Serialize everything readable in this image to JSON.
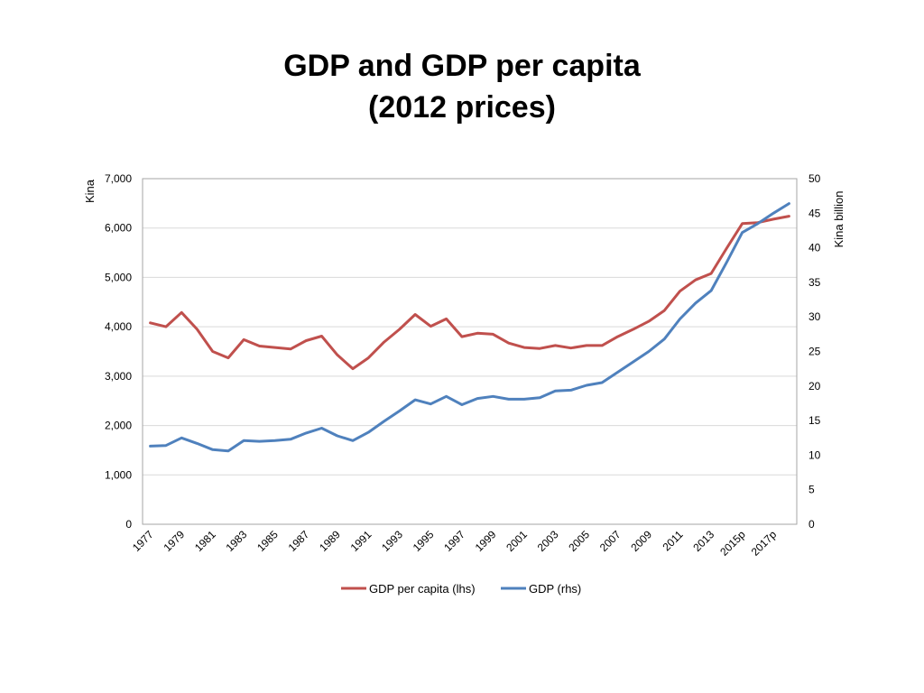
{
  "title_lines": [
    "GDP and GDP per capita",
    "(2012 prices)"
  ],
  "chart_data": {
    "type": "line",
    "title": "GDP and GDP per capita (2012 prices)",
    "x": [
      "1977",
      "1978",
      "1979",
      "1980",
      "1981",
      "1982",
      "1983",
      "1984",
      "1985",
      "1986",
      "1987",
      "1988",
      "1989",
      "1990",
      "1991",
      "1992",
      "1993",
      "1994",
      "1995",
      "1996",
      "1997",
      "1998",
      "1999",
      "2000",
      "2001",
      "2002",
      "2003",
      "2004",
      "2005",
      "2006",
      "2007",
      "2008",
      "2009",
      "2010",
      "2011",
      "2012",
      "2013",
      "2014",
      "2015p",
      "2016p",
      "2017p",
      "2018p"
    ],
    "x_tick_labels": [
      "1977",
      "1979",
      "1981",
      "1983",
      "1985",
      "1987",
      "1989",
      "1991",
      "1993",
      "1995",
      "1997",
      "1999",
      "2001",
      "2003",
      "2005",
      "2007",
      "2009",
      "2011",
      "2013",
      "2015p",
      "2017p"
    ],
    "ylabel_left": "Kina",
    "ylabel_right": "Kina billion",
    "ylim_left": [
      0,
      7000
    ],
    "ylim_right": [
      0,
      50
    ],
    "yticks_left": [
      "0",
      "1,000",
      "2,000",
      "3,000",
      "4,000",
      "5,000",
      "6,000",
      "7,000"
    ],
    "yticks_right": [
      "0",
      "5",
      "10",
      "15",
      "20",
      "25",
      "30",
      "35",
      "40",
      "45",
      "50"
    ],
    "grid": true,
    "legend_position": "bottom",
    "series": [
      {
        "name": "GDP per capita (lhs)",
        "axis": "left",
        "color": "#C0504D",
        "values": [
          4080,
          4000,
          4290,
          3950,
          3500,
          3370,
          3740,
          3610,
          3580,
          3550,
          3720,
          3810,
          3430,
          3150,
          3370,
          3690,
          3950,
          4250,
          4010,
          4160,
          3800,
          3870,
          3850,
          3670,
          3580,
          3560,
          3620,
          3570,
          3620,
          3620,
          3800,
          3950,
          4110,
          4330,
          4720,
          4950,
          5080,
          5590,
          6090,
          6110,
          6180,
          6240
        ]
      },
      {
        "name": "GDP (rhs)",
        "axis": "right",
        "color": "#4F81BD",
        "values": [
          11.3,
          11.4,
          12.5,
          11.7,
          10.8,
          10.6,
          12.1,
          12.0,
          12.1,
          12.3,
          13.2,
          13.9,
          12.8,
          12.1,
          13.3,
          14.9,
          16.4,
          18.0,
          17.4,
          18.5,
          17.3,
          18.2,
          18.5,
          18.1,
          18.1,
          18.3,
          19.3,
          19.4,
          20.1,
          20.5,
          22.0,
          23.5,
          25.0,
          26.8,
          29.7,
          32.0,
          33.8,
          37.9,
          42.2,
          43.5,
          45.0,
          46.4
        ]
      }
    ]
  }
}
